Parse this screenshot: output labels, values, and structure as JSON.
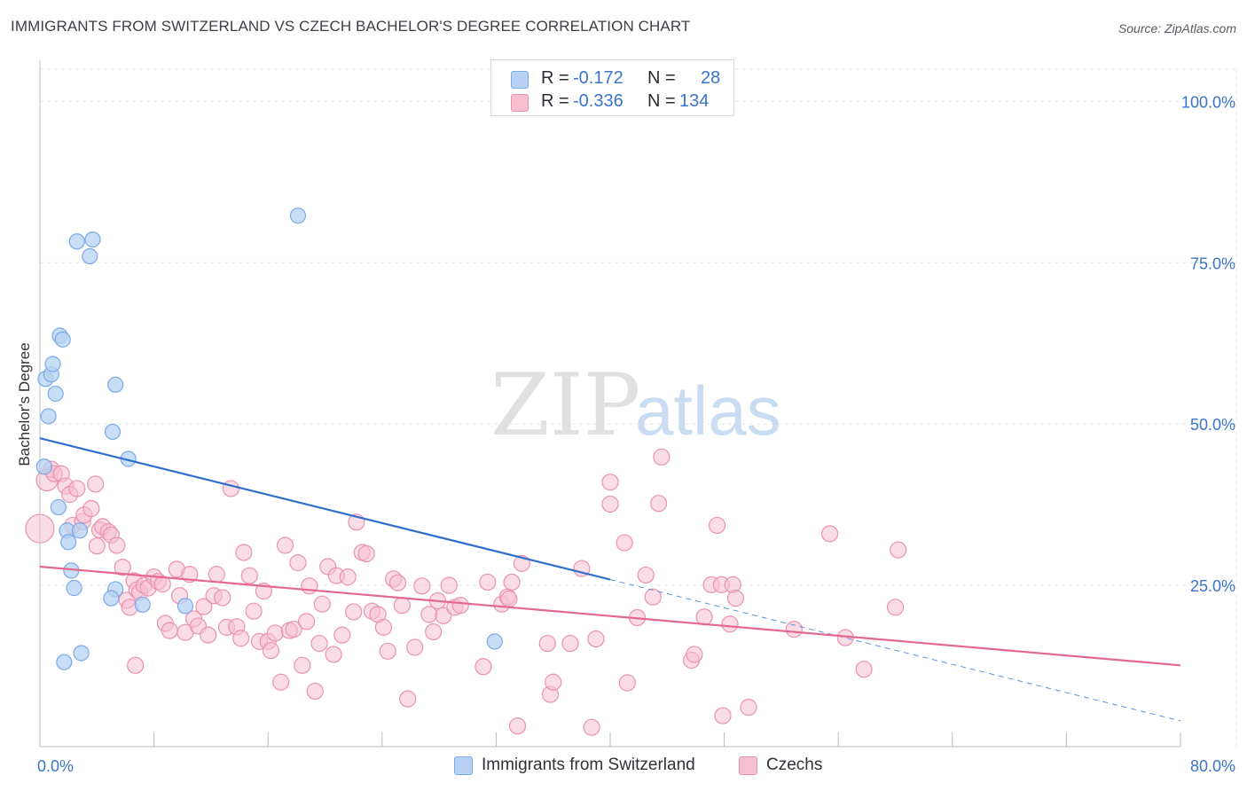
{
  "title": "IMMIGRANTS FROM SWITZERLAND VS CZECH BACHELOR'S DEGREE CORRELATION CHART",
  "source": "Source: ZipAtlas.com",
  "watermark": {
    "zip": "ZIP",
    "atlas": "atlas"
  },
  "legend_top": [
    {
      "swatch_fill": "#b6d1f3",
      "swatch_stroke": "#7aaae6",
      "r_key": "R =",
      "r_value": "-0.172",
      "n_key": "N =",
      "n_value": "28"
    },
    {
      "swatch_fill": "#f6c0d1",
      "swatch_stroke": "#ea92b0",
      "r_key": "R =",
      "r_value": "-0.336",
      "n_key": "N =",
      "n_value": "134"
    }
  ],
  "legend_bottom": [
    {
      "label": "Immigrants from Switzerland",
      "swatch_fill": "#b6d1f3",
      "swatch_stroke": "#7aaae6"
    },
    {
      "label": "Czechs",
      "swatch_fill": "#f6c0d1",
      "swatch_stroke": "#ea92b0"
    }
  ],
  "chart_data": {
    "type": "scatter",
    "title": "IMMIGRANTS FROM SWITZERLAND VS CZECH BACHELOR'S DEGREE CORRELATION CHART",
    "xlabel": "",
    "ylabel": "Bachelor's Degree",
    "xlim": [
      0,
      80
    ],
    "ylim": [
      0,
      105
    ],
    "x_tick_labels": [
      "0.0%",
      "80.0%"
    ],
    "y_ticks": [
      25,
      50,
      75,
      100
    ],
    "y_tick_labels": [
      "25.0%",
      "50.0%",
      "75.0%",
      "100.0%"
    ],
    "grid": true,
    "legend_position": "top-center",
    "series": [
      {
        "name": "Immigrants from Switzerland",
        "color": "#7aaae6",
        "fill": "#b6d1f3",
        "trend": {
          "x": [
            0,
            40
          ],
          "y": [
            47.8,
            25.9
          ],
          "extended_to": [
            80,
            4.0
          ]
        },
        "points": [
          [
            0.3,
            43.4
          ],
          [
            0.4,
            57.0
          ],
          [
            0.6,
            51.2
          ],
          [
            0.8,
            57.7
          ],
          [
            0.9,
            59.3
          ],
          [
            1.1,
            54.7
          ],
          [
            1.3,
            37.1
          ],
          [
            1.4,
            63.7
          ],
          [
            1.6,
            63.1
          ],
          [
            1.7,
            13.1
          ],
          [
            1.9,
            33.5
          ],
          [
            2.0,
            31.7
          ],
          [
            2.2,
            27.3
          ],
          [
            2.4,
            24.6
          ],
          [
            2.6,
            78.3
          ],
          [
            2.8,
            33.5
          ],
          [
            2.9,
            14.5
          ],
          [
            3.5,
            76.0
          ],
          [
            3.7,
            78.6
          ],
          [
            5.1,
            48.8
          ],
          [
            5.3,
            56.1
          ],
          [
            5.3,
            24.4
          ],
          [
            6.2,
            44.6
          ],
          [
            7.2,
            22.0
          ],
          [
            10.2,
            21.8
          ],
          [
            18.1,
            82.3
          ],
          [
            31.9,
            16.3
          ],
          [
            5.0,
            23.0
          ]
        ]
      },
      {
        "name": "Czechs",
        "color": "#e9709a",
        "fill": "#f6c0d1",
        "trend": {
          "x": [
            0,
            80
          ],
          "y": [
            27.9,
            12.6
          ]
        },
        "points": [
          [
            0.0,
            33.8
          ],
          [
            0.5,
            41.3
          ],
          [
            0.8,
            43.0
          ],
          [
            1.0,
            42.3
          ],
          [
            1.5,
            42.3
          ],
          [
            1.8,
            40.4
          ],
          [
            2.1,
            39.1
          ],
          [
            2.3,
            34.3
          ],
          [
            2.6,
            40.0
          ],
          [
            3.0,
            34.9
          ],
          [
            3.1,
            35.9
          ],
          [
            3.6,
            36.9
          ],
          [
            4.0,
            31.1
          ],
          [
            4.2,
            33.6
          ],
          [
            4.4,
            34.1
          ],
          [
            4.8,
            33.3
          ],
          [
            5.0,
            32.8
          ],
          [
            5.4,
            31.2
          ],
          [
            5.8,
            27.8
          ],
          [
            6.1,
            22.7
          ],
          [
            6.3,
            21.6
          ],
          [
            6.6,
            25.7
          ],
          [
            6.8,
            24.3
          ],
          [
            7.0,
            23.9
          ],
          [
            7.3,
            25.0
          ],
          [
            7.6,
            24.6
          ],
          [
            8.0,
            26.3
          ],
          [
            8.3,
            25.6
          ],
          [
            8.6,
            25.2
          ],
          [
            8.8,
            19.1
          ],
          [
            9.1,
            18.0
          ],
          [
            9.6,
            27.5
          ],
          [
            9.8,
            23.4
          ],
          [
            10.2,
            17.7
          ],
          [
            10.5,
            26.7
          ],
          [
            10.8,
            19.8
          ],
          [
            11.1,
            18.7
          ],
          [
            11.5,
            21.7
          ],
          [
            11.8,
            17.3
          ],
          [
            12.2,
            23.4
          ],
          [
            12.4,
            26.7
          ],
          [
            12.8,
            23.1
          ],
          [
            13.1,
            18.5
          ],
          [
            13.4,
            40.0
          ],
          [
            13.8,
            18.6
          ],
          [
            14.1,
            16.8
          ],
          [
            14.3,
            30.1
          ],
          [
            14.7,
            26.5
          ],
          [
            15.0,
            21.0
          ],
          [
            15.4,
            16.3
          ],
          [
            15.7,
            24.1
          ],
          [
            16.0,
            16.3
          ],
          [
            16.2,
            14.9
          ],
          [
            16.5,
            17.6
          ],
          [
            16.9,
            10.0
          ],
          [
            17.2,
            31.2
          ],
          [
            17.5,
            18.0
          ],
          [
            17.8,
            18.2
          ],
          [
            18.1,
            28.5
          ],
          [
            18.4,
            12.6
          ],
          [
            18.7,
            19.4
          ],
          [
            18.9,
            24.9
          ],
          [
            19.3,
            8.6
          ],
          [
            19.6,
            16.0
          ],
          [
            19.8,
            22.1
          ],
          [
            20.2,
            27.9
          ],
          [
            20.6,
            14.3
          ],
          [
            20.8,
            26.5
          ],
          [
            21.2,
            17.3
          ],
          [
            21.6,
            26.3
          ],
          [
            22.0,
            20.9
          ],
          [
            22.2,
            34.8
          ],
          [
            22.6,
            30.1
          ],
          [
            22.9,
            29.9
          ],
          [
            23.3,
            21.0
          ],
          [
            23.7,
            20.5
          ],
          [
            24.1,
            18.5
          ],
          [
            24.4,
            14.8
          ],
          [
            24.8,
            26.0
          ],
          [
            25.1,
            25.4
          ],
          [
            25.4,
            21.9
          ],
          [
            25.8,
            7.4
          ],
          [
            26.3,
            15.4
          ],
          [
            26.8,
            24.9
          ],
          [
            27.3,
            20.5
          ],
          [
            27.6,
            17.8
          ],
          [
            27.9,
            22.6
          ],
          [
            28.3,
            20.3
          ],
          [
            28.7,
            25.0
          ],
          [
            29.1,
            21.6
          ],
          [
            29.5,
            21.9
          ],
          [
            31.1,
            12.4
          ],
          [
            31.4,
            25.5
          ],
          [
            32.4,
            22.1
          ],
          [
            32.8,
            23.2
          ],
          [
            32.9,
            22.9
          ],
          [
            33.1,
            25.5
          ],
          [
            33.5,
            3.2
          ],
          [
            33.8,
            28.4
          ],
          [
            35.6,
            16.0
          ],
          [
            35.8,
            8.1
          ],
          [
            36.0,
            10.0
          ],
          [
            37.2,
            16.0
          ],
          [
            38.0,
            27.6
          ],
          [
            38.7,
            3.0
          ],
          [
            39.0,
            16.7
          ],
          [
            40.0,
            41.0
          ],
          [
            40.0,
            37.6
          ],
          [
            41.0,
            31.6
          ],
          [
            41.2,
            9.9
          ],
          [
            41.9,
            20.0
          ],
          [
            42.5,
            26.6
          ],
          [
            43.4,
            37.7
          ],
          [
            43.6,
            44.9
          ],
          [
            43.0,
            23.2
          ],
          [
            45.7,
            13.4
          ],
          [
            45.9,
            14.3
          ],
          [
            46.6,
            20.1
          ],
          [
            47.1,
            25.1
          ],
          [
            47.5,
            34.3
          ],
          [
            47.8,
            25.1
          ],
          [
            47.9,
            4.8
          ],
          [
            48.4,
            19.0
          ],
          [
            48.6,
            25.1
          ],
          [
            48.8,
            23.0
          ],
          [
            49.7,
            6.1
          ],
          [
            52.9,
            18.2
          ],
          [
            55.4,
            33.0
          ],
          [
            56.5,
            16.9
          ],
          [
            57.8,
            12.0
          ],
          [
            60.2,
            30.5
          ],
          [
            60.0,
            21.6
          ],
          [
            3.9,
            40.7
          ],
          [
            6.7,
            12.6
          ]
        ]
      }
    ]
  }
}
